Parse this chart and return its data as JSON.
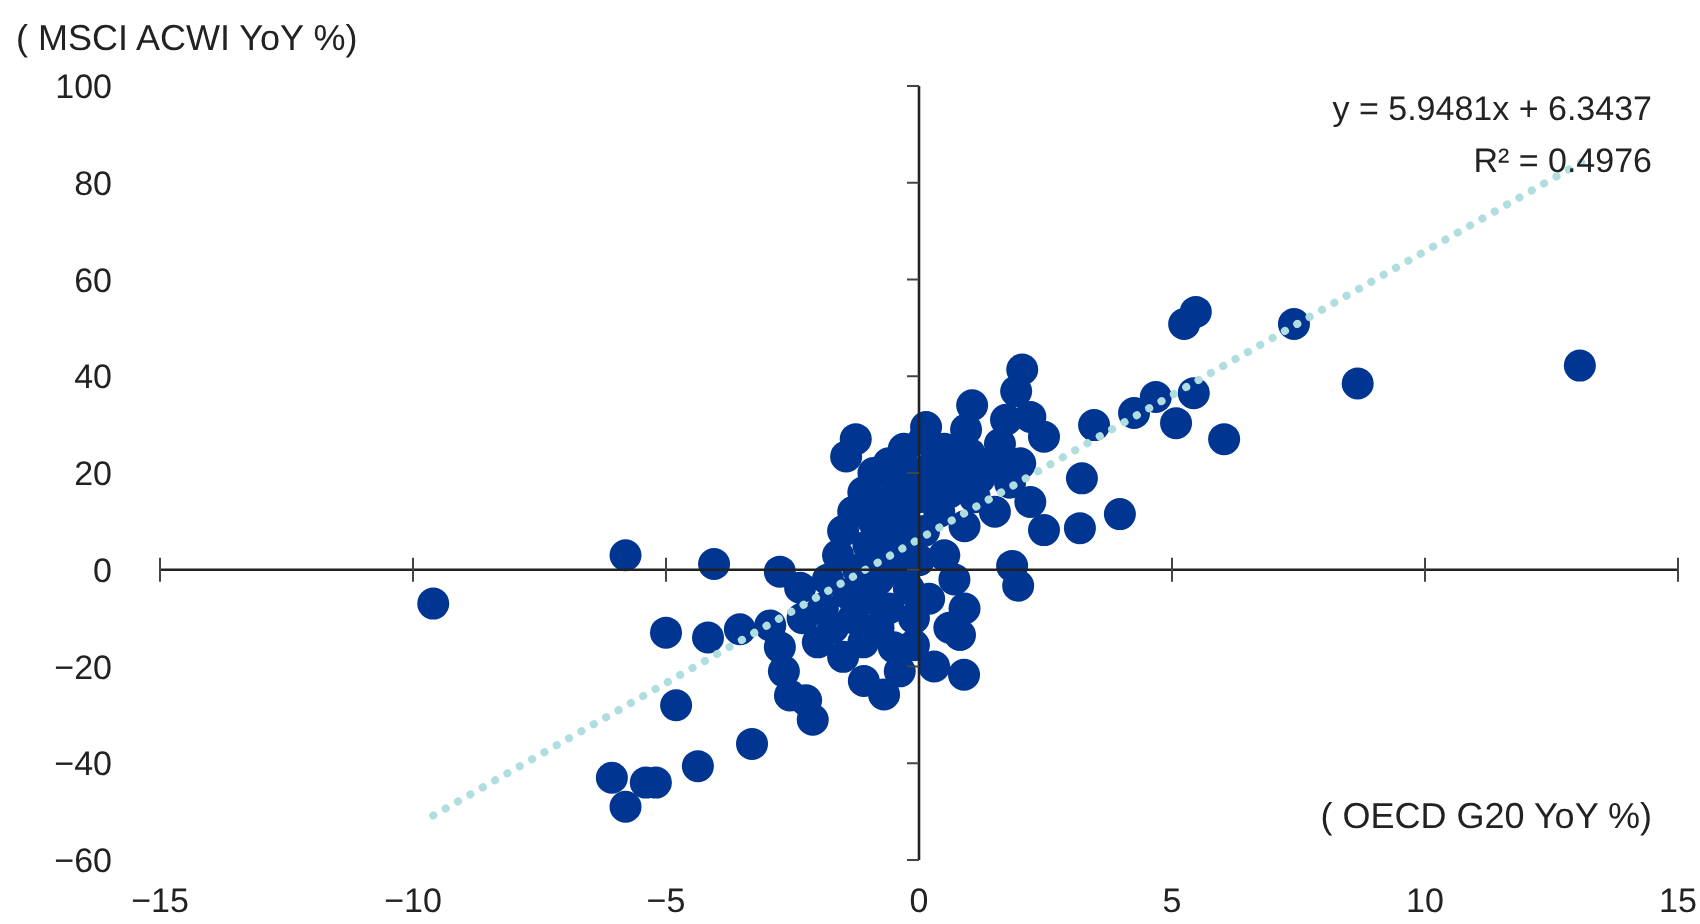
{
  "chart_data": {
    "type": "scatter",
    "ylabel": "( MSCI ACWI YoY %)",
    "xlabel": "( OECD G20 YoY %)",
    "annotations": [
      "y = 5.9481x + 6.3437",
      "R² = 0.4976"
    ],
    "xlim": [
      -15,
      15
    ],
    "xticks": [
      -15,
      -10,
      -5,
      0,
      5,
      10,
      15
    ],
    "ylim": [
      -60,
      100
    ],
    "yticks": [
      -60,
      -40,
      -20,
      0,
      20,
      40,
      60,
      80,
      100
    ],
    "marker": "circle",
    "series": [
      {
        "color": "#003591",
        "x": [
          -9.6,
          -5.8,
          -4.05,
          -2.75,
          -5.0,
          -4.17,
          -3.54,
          -4.8,
          -4.37,
          -3.3,
          -6.07,
          -5.8,
          -5.4,
          -5.2,
          7.41,
          8.67,
          13.06,
          5.24,
          5.47,
          4.68,
          4.25,
          5.43,
          5.08,
          6.03,
          3.46,
          3.22,
          3.97,
          3.18,
          2.47,
          2.04,
          1.92,
          1.84,
          1.96,
          1.05,
          -1.25,
          -1.44,
          0.14,
          0.93,
          1.72,
          2.2,
          2.47,
          -2.35,
          -2.94,
          -0.1,
          0.81,
          0.89,
          0.3,
          -0.69,
          -1.09,
          -2.23,
          -2.1,
          -2.55,
          -2.67,
          -2.75,
          -0.38,
          -2.3,
          -2.0,
          -1.9,
          -1.8,
          -1.7,
          -1.6,
          -1.5,
          -1.5,
          -1.4,
          -1.3,
          -1.3,
          -1.2,
          -1.1,
          -1.1,
          -1.0,
          -1.0,
          -0.9,
          -0.9,
          -0.8,
          -0.8,
          -0.7,
          -0.7,
          -0.6,
          -0.6,
          -0.5,
          -0.5,
          -0.4,
          -0.4,
          -0.3,
          -0.3,
          -0.2,
          -0.2,
          -0.1,
          -0.1,
          0,
          0,
          0.1,
          0.1,
          0.2,
          0.3,
          0.3,
          0.4,
          0.5,
          0.5,
          0.6,
          0.7,
          0.8,
          0.9,
          1.0,
          1.1,
          1.2,
          1.4,
          1.5,
          1.6,
          1.8,
          2.0,
          2.2,
          0.9,
          0.6
        ],
        "values": [
          -7,
          3,
          1.2,
          -0.4,
          -13,
          -14,
          -12.3,
          -28,
          -40.6,
          -36,
          -43,
          -49,
          -44,
          -44,
          50.8,
          38.5,
          42.2,
          50.8,
          53.3,
          35.7,
          32.4,
          36.5,
          30.3,
          27,
          29.9,
          18.9,
          11.5,
          8.6,
          8.2,
          41.4,
          36.9,
          0.8,
          -3.3,
          34,
          27,
          23.4,
          29.5,
          29,
          31,
          31.6,
          27.5,
          -3.7,
          -11.5,
          -15.6,
          -13.5,
          -21.7,
          -20,
          -25.8,
          -23,
          -27,
          -31,
          -26,
          -21,
          -16,
          -21,
          -10,
          -15,
          -8,
          -2,
          -12,
          3,
          -18,
          8,
          -5,
          12,
          -10,
          0,
          16,
          -15,
          5,
          -6,
          20,
          10,
          -2,
          -12,
          14,
          3,
          22,
          -8,
          8,
          -16,
          18,
          0,
          25,
          12,
          -4,
          5,
          20,
          -10,
          15,
          2,
          27,
          8,
          -6,
          18,
          22,
          12,
          3,
          25,
          16,
          -2,
          20,
          9,
          24,
          15,
          19,
          22,
          12,
          26,
          18,
          22,
          14,
          -8,
          -12
        ]
      },
      {
        "type": "line",
        "color": "#b0dde0",
        "line_style": "dotted",
        "marker": "none",
        "x": [
          -9.6,
          13.1
        ],
        "values": [
          -50.8,
          84.3
        ]
      }
    ]
  }
}
